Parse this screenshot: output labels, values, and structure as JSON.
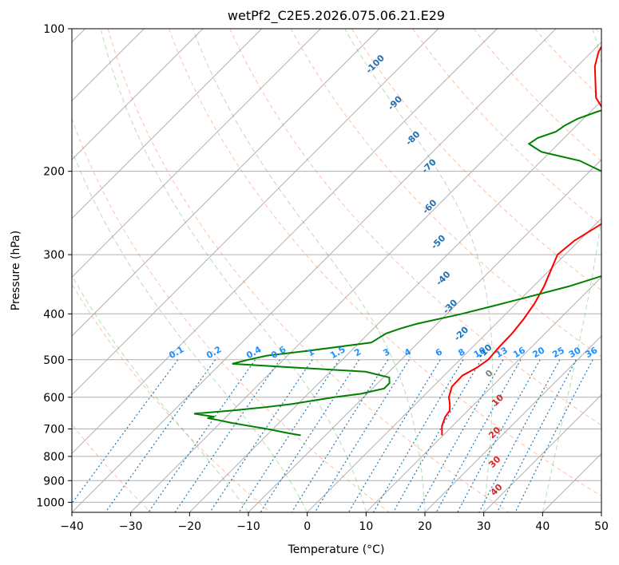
{
  "chart_data": {
    "type": "line",
    "subtype": "skew-t log-p diagram",
    "title": "wetPf2_C2E5.2026.075.06.21.E29",
    "xlabel": "Temperature (°C)",
    "ylabel": "Pressure (hPa)",
    "xlim": [
      -40,
      50
    ],
    "ylim": [
      1050,
      100
    ],
    "y_scale": "log",
    "grid": true,
    "x_ticks": [
      -40,
      -30,
      -20,
      -10,
      0,
      10,
      20,
      30,
      40,
      50
    ],
    "x_tick_labels": [
      "−40",
      "−30",
      "−20",
      "−10",
      "0",
      "10",
      "20",
      "30",
      "40",
      "50"
    ],
    "y_ticks": [
      1000,
      900,
      800,
      700,
      600,
      500,
      400,
      300,
      200,
      100
    ],
    "y_tick_labels": [
      "1000",
      "900",
      "800",
      "700",
      "600",
      "500",
      "400",
      "300",
      "200",
      "100"
    ],
    "skew_degrees": 45,
    "isotherm_step": 10,
    "dry_adiabats_C": [
      -30,
      -10,
      10,
      30,
      50,
      70,
      90,
      110,
      130,
      150,
      170,
      190,
      210
    ],
    "moist_adiabats_C": [
      -10,
      0,
      10,
      20,
      30,
      40
    ],
    "mixing_ratio_lines_gkg": [
      0.1,
      0.2,
      0.4,
      0.6,
      1,
      1.5,
      2,
      3,
      4,
      6,
      8,
      10,
      13,
      16,
      20,
      25,
      30,
      36
    ],
    "mixing_ratio_labels": [
      "0.1",
      "0.2",
      "0.4",
      "0.6",
      "1",
      "1.5",
      "2",
      "3",
      "4",
      "6",
      "8",
      "10",
      "13",
      "16",
      "20",
      "25",
      "30",
      "36"
    ],
    "blue_labels": [
      {
        "text": "-100",
        "p": 120,
        "t": -64
      },
      {
        "text": "-90",
        "p": 145,
        "t": -54
      },
      {
        "text": "-80",
        "p": 172,
        "t": -45
      },
      {
        "text": "-70",
        "p": 197,
        "t": -37.5
      },
      {
        "text": "-60",
        "p": 240,
        "t": -30.5
      },
      {
        "text": "-50",
        "p": 285,
        "t": -23
      },
      {
        "text": "-40",
        "p": 340,
        "t": -16
      },
      {
        "text": "-30",
        "p": 390,
        "t": -10
      },
      {
        "text": "-20",
        "p": 445,
        "t": -3.5
      },
      {
        "text": "-10",
        "p": 485,
        "t": 3.5
      }
    ],
    "moist_labels": [
      {
        "text": "0",
        "p": 540,
        "t": 8,
        "color": "#7f7f7f"
      },
      {
        "text": "10",
        "p": 615,
        "t": 14,
        "color": "#d62728"
      },
      {
        "text": "20",
        "p": 720,
        "t": 19,
        "color": "#d62728"
      },
      {
        "text": "30",
        "p": 830,
        "t": 24,
        "color": "#d62728"
      },
      {
        "text": "40",
        "p": 950,
        "t": 29,
        "color": "#d62728"
      }
    ],
    "series": [
      {
        "color": "#ff0000",
        "pressure_hPa": [
          722,
          690,
          660,
          640,
          620,
          600,
          570,
          540,
          520,
          500,
          470,
          440,
          410,
          380,
          350,
          320,
          300,
          280,
          260,
          240,
          225,
          210,
          195,
          180,
          170,
          160,
          150,
          140,
          130,
          120,
          112,
          105,
          100
        ],
        "temperature_C": [
          9.8,
          8.2,
          7.2,
          6.9,
          5.8,
          4.5,
          3.2,
          3.1,
          4.2,
          4.8,
          4.5,
          4.4,
          3.9,
          3.1,
          1.8,
          0.0,
          -1.3,
          -0.8,
          0.8,
          2.4,
          2.1,
          -0.6,
          -4.3,
          -8.0,
          -11.5,
          -14.5,
          -17.5,
          -21.4,
          -24.1,
          -27.0,
          -28.8,
          -29.8,
          -31.5
        ]
      },
      {
        "color": "#008000",
        "pressure_hPa": [
          722,
          715,
          700,
          690,
          680,
          670,
          664,
          660,
          655,
          650,
          640,
          630,
          620,
          610,
          600,
          590,
          575,
          560,
          545,
          530,
          520,
          510,
          500,
          490,
          480,
          460,
          440,
          430,
          420,
          400,
          385,
          370,
          350,
          330,
          310,
          300,
          290,
          280,
          270,
          260,
          250,
          240,
          230,
          220,
          210,
          200,
          190,
          185,
          182,
          178,
          175,
          170,
          165,
          160,
          155,
          150,
          145,
          140,
          135,
          130,
          125,
          120,
          110,
          100
        ],
        "temperature_C": [
          -14.2,
          -16.5,
          -21.0,
          -24.5,
          -28.0,
          -31.0,
          -33.0,
          -32.0,
          -34.0,
          -36.0,
          -30.0,
          -25.0,
          -21.0,
          -18.0,
          -15.0,
          -11.0,
          -8.0,
          -8.0,
          -9.0,
          -14.0,
          -26.0,
          -38.0,
          -36.0,
          -33.5,
          -28.0,
          -18.0,
          -17.0,
          -15.5,
          -13.5,
          -7.5,
          -3.5,
          0.5,
          6.0,
          10.5,
          13.0,
          13.5,
          11.0,
          8.5,
          4.5,
          1.5,
          0.8,
          2.2,
          1.5,
          0.0,
          -3.0,
          -8.0,
          -13.5,
          -18.5,
          -21.5,
          -23.5,
          -25.0,
          -24.5,
          -22.5,
          -22.0,
          -21.0,
          -19.0,
          -16.5,
          -14.0,
          -12.5,
          -12.0,
          -11.0,
          -10.5,
          -9.5,
          -8.5
        ]
      }
    ]
  }
}
